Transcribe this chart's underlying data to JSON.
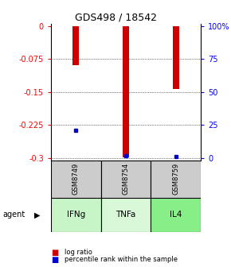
{
  "title": "GDS498 / 18542",
  "samples": [
    "GSM8749",
    "GSM8754",
    "GSM8759"
  ],
  "agents": [
    "IFNg",
    "TNFa",
    "IL4"
  ],
  "log_ratios": [
    -0.088,
    -0.299,
    -0.143
  ],
  "percentile_ranks": [
    -0.237,
    -0.295,
    -0.297
  ],
  "ylim_left": [
    -0.305,
    0.005
  ],
  "yticks_left": [
    0,
    -0.075,
    -0.15,
    -0.225,
    -0.3
  ],
  "ytick_labels_left": [
    "0",
    "-0.075",
    "-0.15",
    "-0.225",
    "-0.3"
  ],
  "ytick_labels_right": [
    "100%",
    "75",
    "50",
    "25",
    "0"
  ],
  "bar_color": "#cc0000",
  "percentile_color": "#0000cc",
  "sample_bg": "#cccccc",
  "agent_bg_colors": [
    "#c8f5c8",
    "#d8f8d8",
    "#88ee88"
  ],
  "legend_log": "log ratio",
  "legend_pct": "percentile rank within the sample",
  "bar_width": 0.12
}
